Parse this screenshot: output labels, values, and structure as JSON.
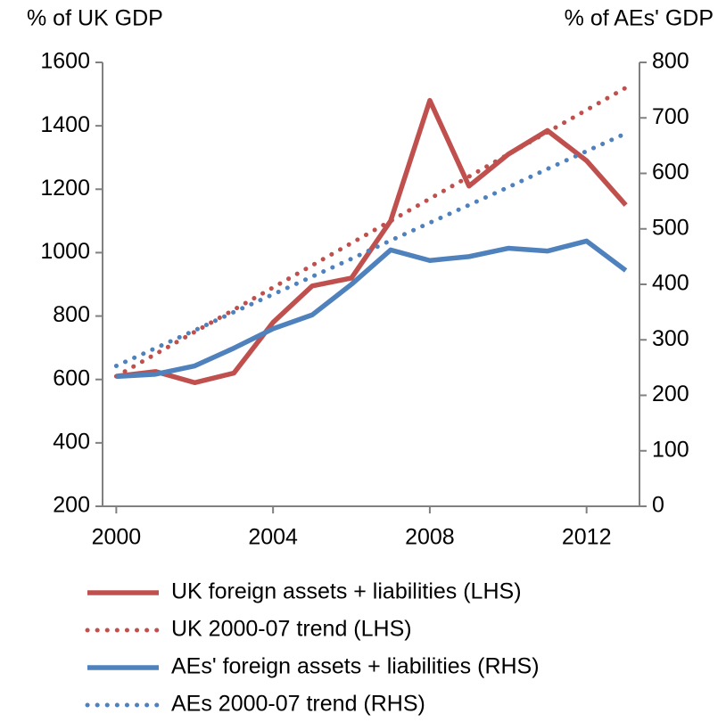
{
  "chart_data": {
    "type": "line",
    "y_label": "% of UK GDP",
    "y2_label": "% of AEs' GDP",
    "x": [
      2000,
      2001,
      2002,
      2003,
      2004,
      2005,
      2006,
      2007,
      2008,
      2009,
      2010,
      2011,
      2012,
      2013
    ],
    "xlim": [
      1999.65,
      2013.35
    ],
    "xticks": [
      2000,
      2004,
      2008,
      2012
    ],
    "ylim": [
      200,
      1600
    ],
    "yticks": [
      200,
      400,
      600,
      800,
      1000,
      1200,
      1400,
      1600
    ],
    "y2lim": [
      0,
      800
    ],
    "y2ticks": [
      0,
      100,
      200,
      300,
      400,
      500,
      600,
      700,
      800
    ],
    "grid": false,
    "legend": "bottom",
    "series": [
      {
        "name": "UK foreign assets + liabilities (LHS)",
        "color": "#c0504d",
        "dash": false,
        "values": [
          610,
          625,
          590,
          620,
          780,
          895,
          920,
          1100,
          1480,
          1210,
          1310,
          1385,
          1290,
          1150
        ]
      },
      {
        "name": "UK 2000-07 trend (LHS)",
        "color": "#c0504d",
        "dash": true,
        "values": [
          610,
          680,
          750,
          820,
          890,
          960,
          1030,
          1100,
          1170,
          1240,
          1310,
          1380,
          1450,
          1520
        ]
      },
      {
        "name": "AEs' foreign assets + liabilities (RHS)",
        "color": "#4f81bd",
        "dash": false,
        "axis": "y2",
        "values": [
          234,
          238,
          253,
          285,
          320,
          345,
          400,
          462,
          443,
          450,
          465,
          460,
          478,
          425
        ]
      },
      {
        "name": "AEs 2000-07 trend (RHS)",
        "color": "#4f81bd",
        "dash": true,
        "axis": "y2",
        "values": [
          253,
          285,
          317,
          350,
          382,
          414,
          446,
          479,
          511,
          543,
          575,
          608,
          640,
          672
        ]
      }
    ]
  }
}
